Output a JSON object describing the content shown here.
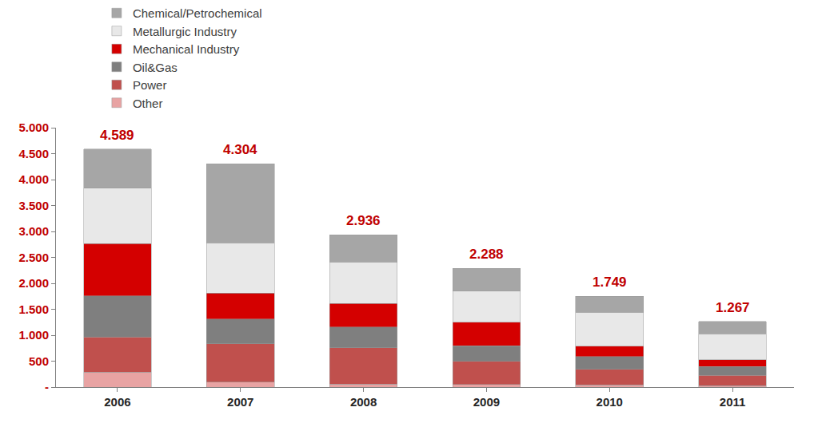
{
  "chart_data": {
    "type": "bar",
    "stacked": true,
    "categories": [
      "2006",
      "2007",
      "2008",
      "2009",
      "2010",
      "2011"
    ],
    "series": [
      {
        "name": "Other",
        "color": "#e8a3a3",
        "values": [
          289,
          100,
          60,
          50,
          40,
          30
        ]
      },
      {
        "name": "Power",
        "color": "#c0504d",
        "values": [
          679,
          736,
          700,
          450,
          300,
          200
        ]
      },
      {
        "name": "Oil&Gas",
        "color": "#7f7f7f",
        "values": [
          792,
          474,
          400,
          300,
          250,
          170
        ]
      },
      {
        "name": "Mechanical Industry",
        "color": "#d40000",
        "values": [
          1006,
          499,
          450,
          450,
          200,
          130
        ]
      },
      {
        "name": "Metallurgic Industry",
        "color": "#e8e8e8",
        "values": [
          1069,
          973,
          800,
          600,
          650,
          500
        ]
      },
      {
        "name": "Chemical/Petrochemical",
        "color": "#a6a6a6",
        "values": [
          754,
          1522,
          526,
          438,
          309,
          237
        ]
      }
    ],
    "totals": {
      "values": [
        4589,
        4304,
        2936,
        2288,
        1749,
        1267
      ],
      "value_labels": [
        "4.589",
        "4.304",
        "2.936",
        "2.288",
        "1.749",
        "1.267"
      ]
    },
    "ylim": [
      0,
      5000
    ],
    "yticks": [
      {
        "value": 0,
        "label": "-"
      },
      {
        "value": 500,
        "label": "500"
      },
      {
        "value": 1000,
        "label": "1.000"
      },
      {
        "value": 1500,
        "label": "1.500"
      },
      {
        "value": 2000,
        "label": "2.000"
      },
      {
        "value": 2500,
        "label": "2.500"
      },
      {
        "value": 3000,
        "label": "3.000"
      },
      {
        "value": 3500,
        "label": "3.500"
      },
      {
        "value": 4000,
        "label": "4.000"
      },
      {
        "value": 4500,
        "label": "4.500"
      },
      {
        "value": 5000,
        "label": "5.000"
      }
    ],
    "grid": false,
    "legend": "top right"
  }
}
